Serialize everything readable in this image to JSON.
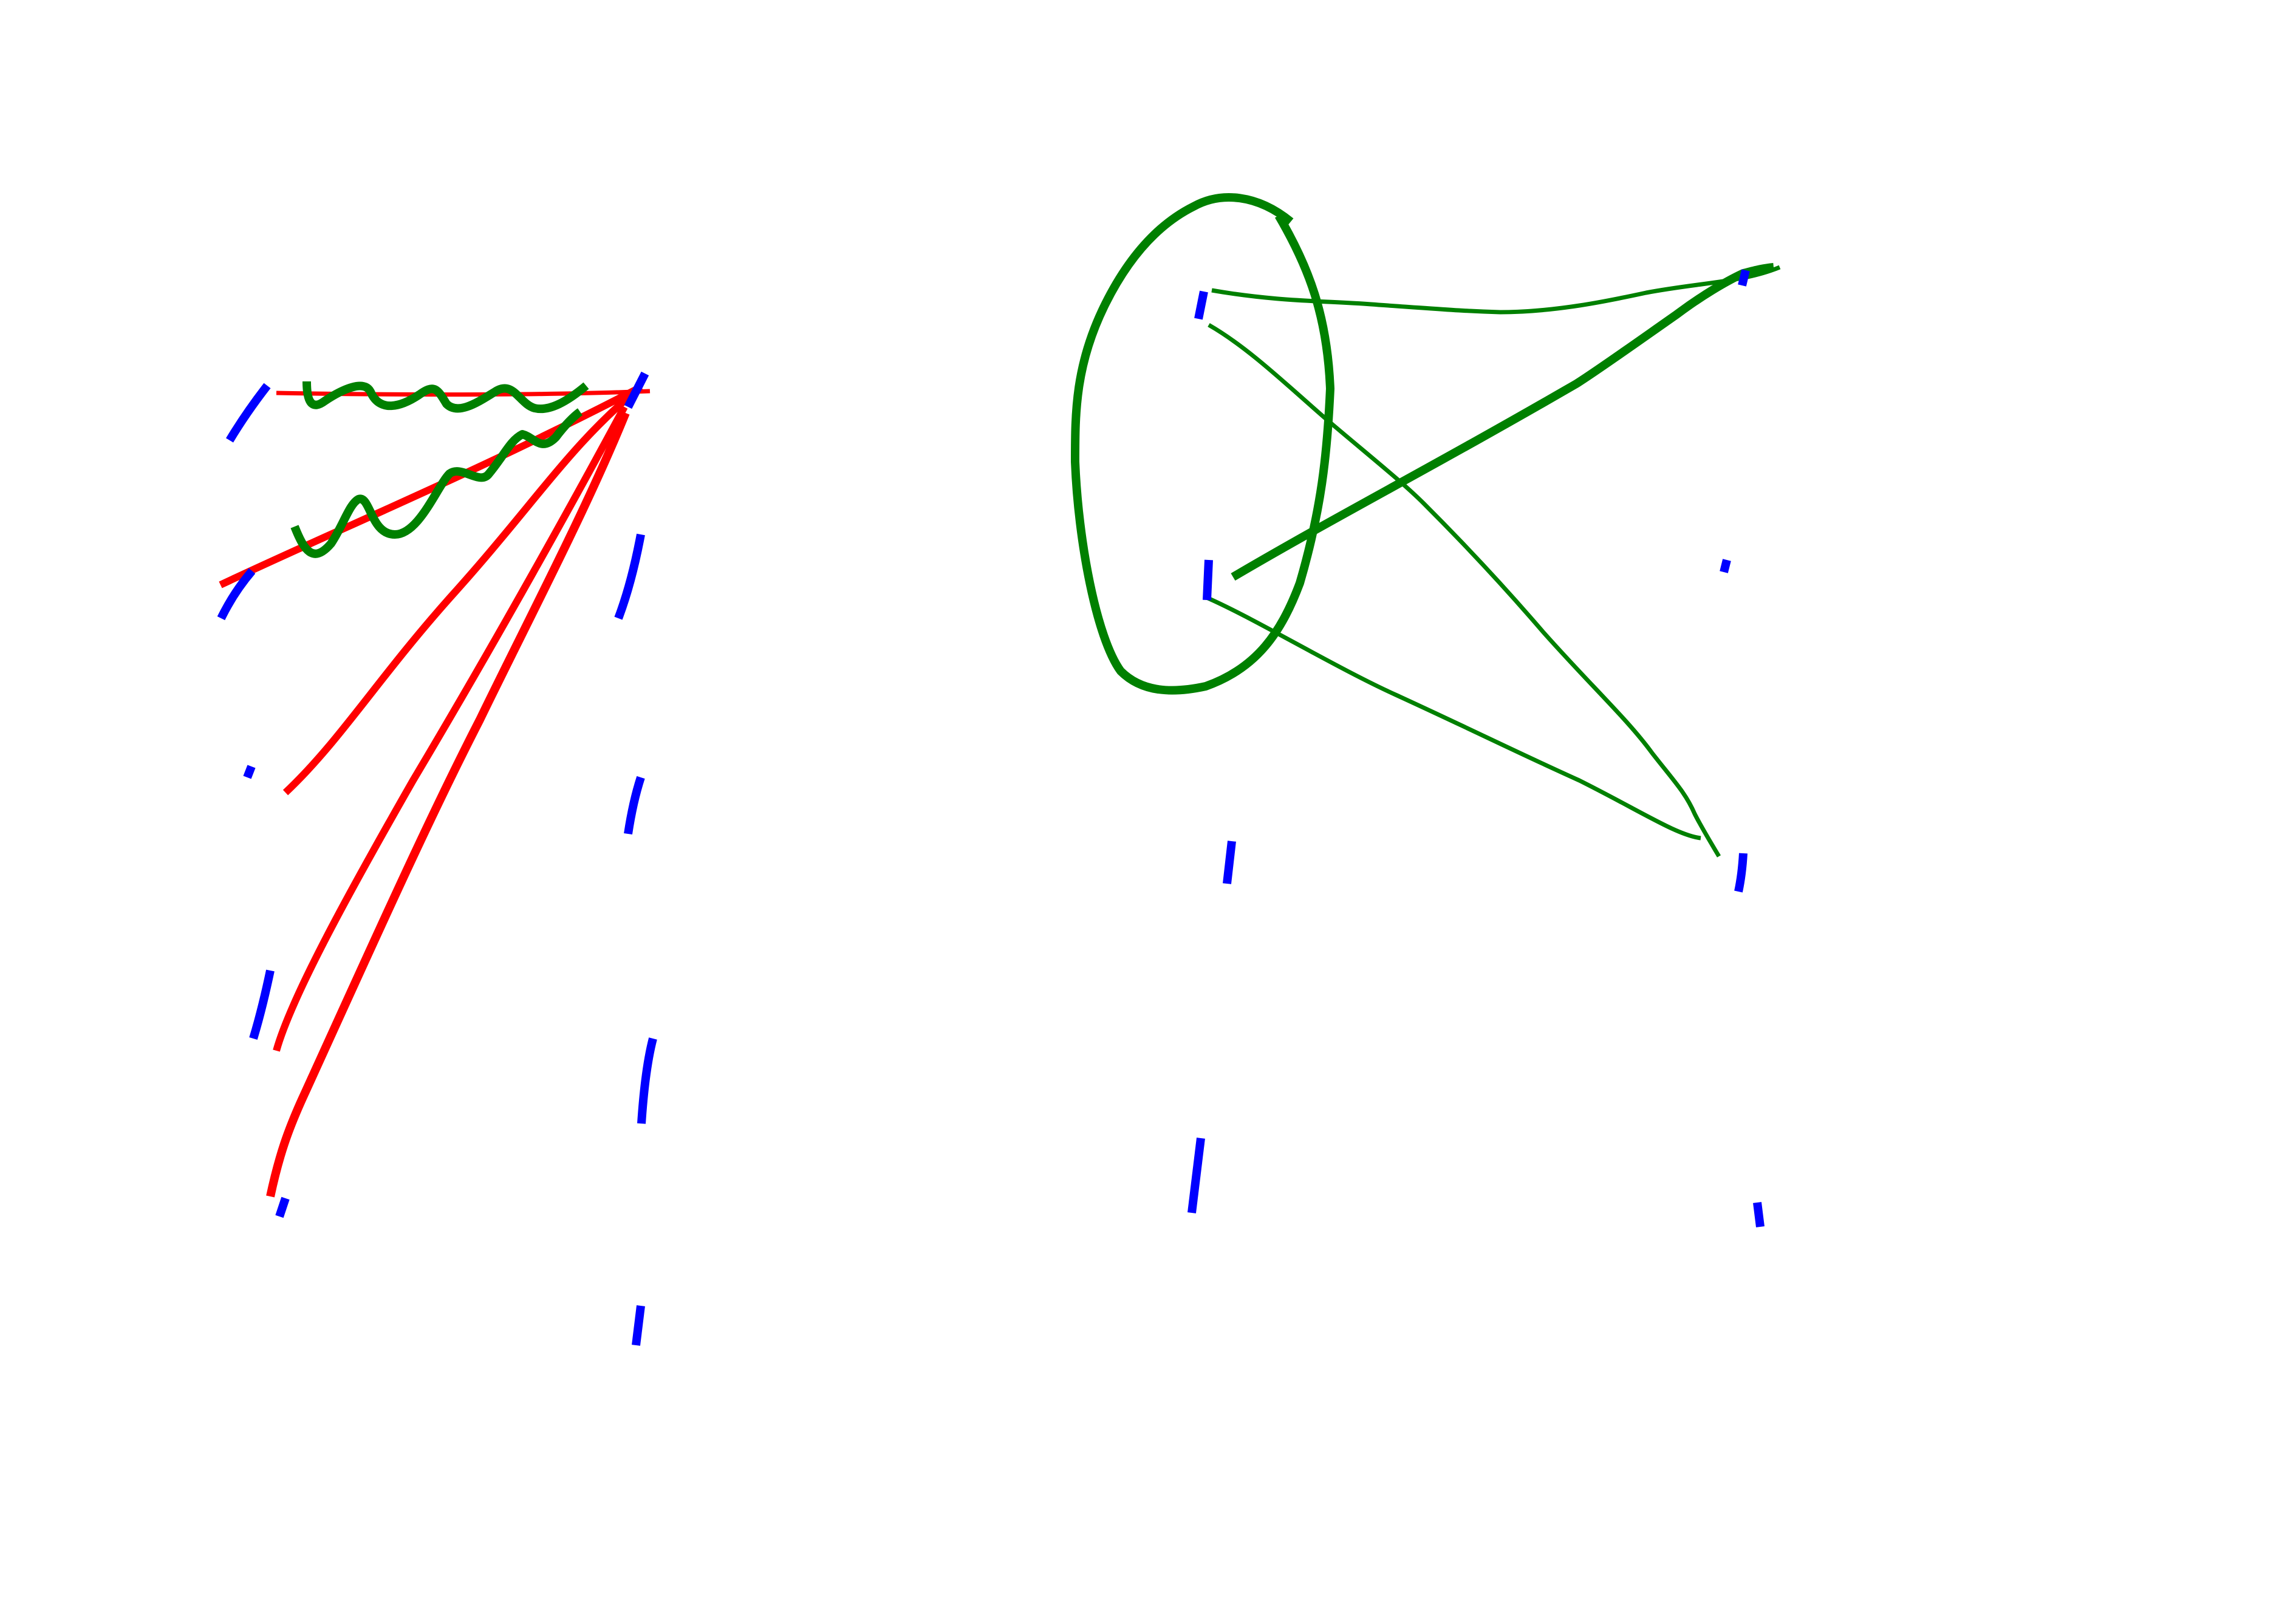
{
  "colors": {
    "background": "#ffffff",
    "node": "#0000ff",
    "gluon": "#008000",
    "fermion": "#ff0000"
  },
  "diagrams": [
    {
      "name": "left-diagram",
      "nodes": [
        "a1",
        "a2",
        "a3",
        "a4",
        "a5",
        "b1",
        "b2",
        "b3",
        "b4",
        "b5",
        "b6"
      ],
      "edges": [
        {
          "name": "fermion-line-1",
          "kind": "fermion"
        },
        {
          "name": "fermion-line-2",
          "kind": "fermion"
        },
        {
          "name": "fermion-line-3",
          "kind": "fermion"
        },
        {
          "name": "fermion-line-4",
          "kind": "fermion"
        },
        {
          "name": "fermion-line-5",
          "kind": "fermion"
        },
        {
          "name": "gluon-line-1",
          "kind": "gluon"
        },
        {
          "name": "gluon-line-2",
          "kind": "gluon"
        }
      ]
    },
    {
      "name": "right-diagram",
      "nodes": [
        "c1",
        "c2",
        "c3",
        "c4",
        "d1",
        "d2",
        "d3",
        "d4"
      ],
      "edges": [
        {
          "name": "loop-line",
          "kind": "gluon"
        },
        {
          "name": "gluon-line-3",
          "kind": "gluon"
        },
        {
          "name": "gluon-line-4",
          "kind": "gluon"
        },
        {
          "name": "gluon-line-5",
          "kind": "gluon"
        },
        {
          "name": "gluon-line-6",
          "kind": "gluon"
        }
      ]
    }
  ]
}
